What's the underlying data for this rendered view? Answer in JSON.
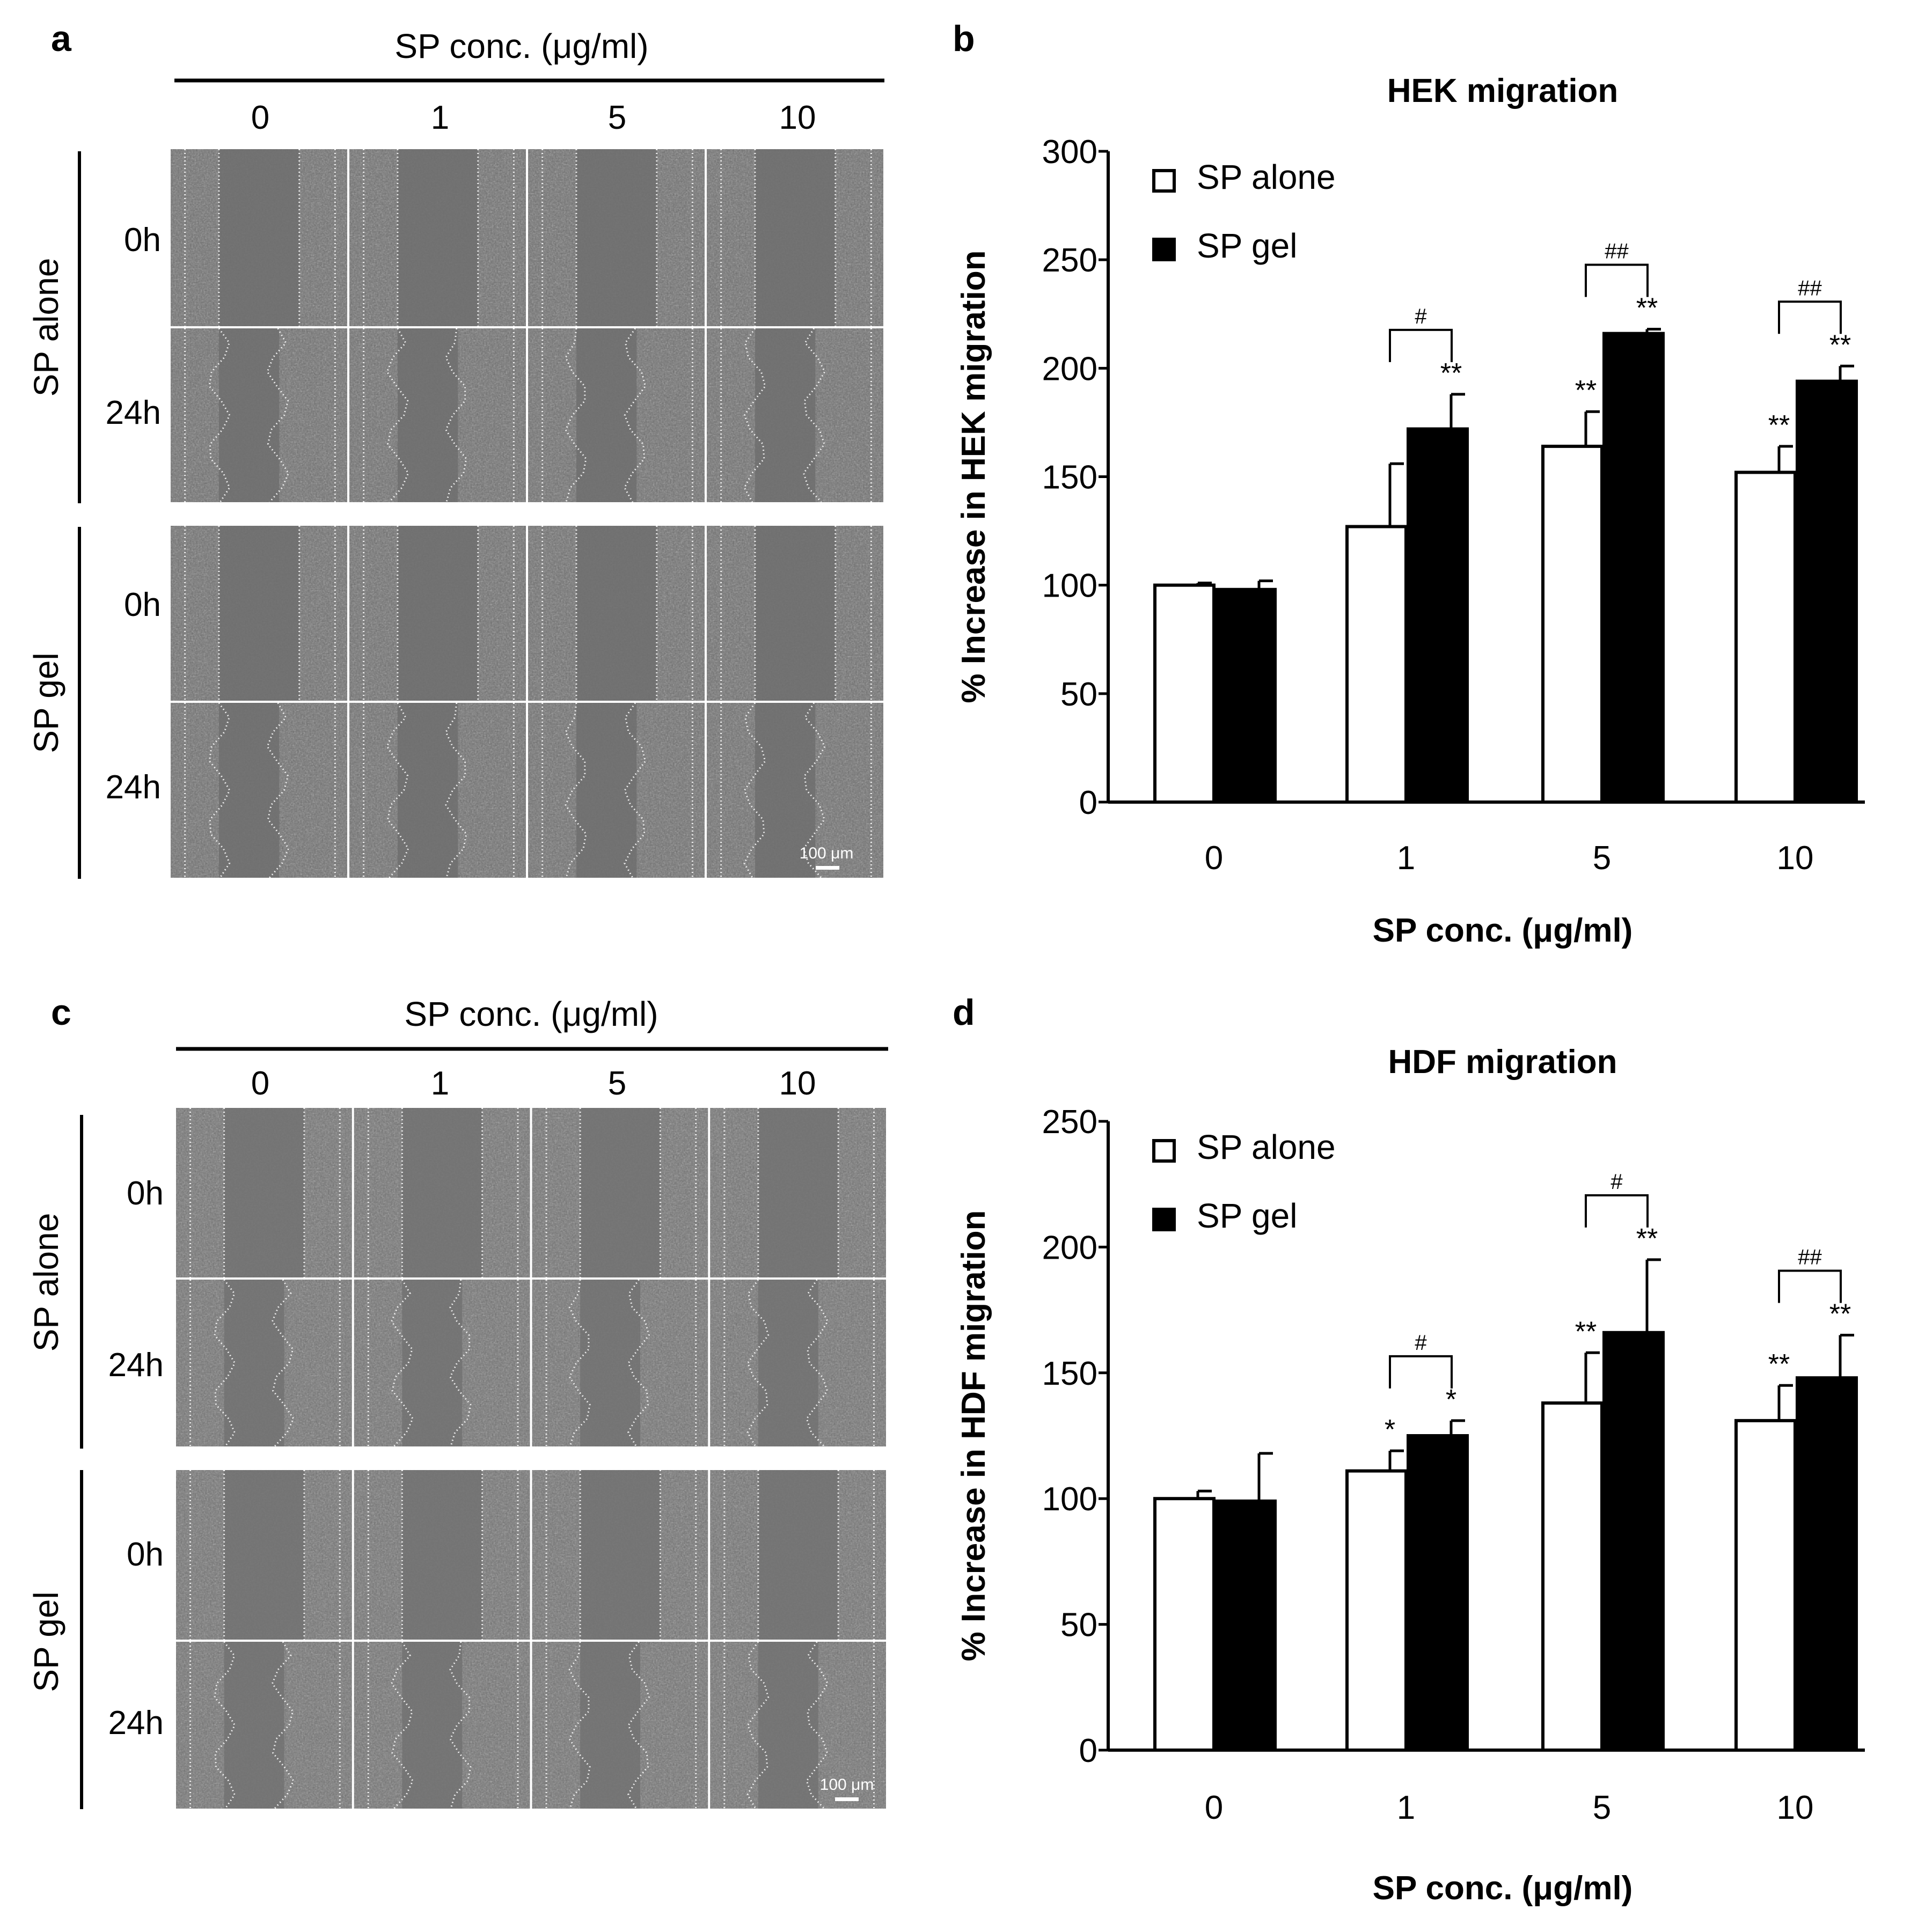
{
  "panels": {
    "a": {
      "letter": "a",
      "header": "SP conc. (μg/ml)",
      "columns": [
        "0",
        "1",
        "5",
        "10"
      ],
      "group_labels": [
        "SP alone",
        "SP gel"
      ],
      "row_labels": [
        "0h",
        "24h",
        "0h",
        "24h"
      ],
      "scale_bar": "100 μm"
    },
    "c": {
      "letter": "c",
      "header": "SP conc. (μg/ml)",
      "columns": [
        "0",
        "1",
        "5",
        "10"
      ],
      "group_labels": [
        "SP alone",
        "SP gel"
      ],
      "row_labels": [
        "0h",
        "24h",
        "0h",
        "24h"
      ],
      "scale_bar": "100 μm"
    },
    "b": {
      "letter": "b"
    },
    "d": {
      "letter": "d"
    }
  },
  "chart_data": [
    {
      "type": "bar",
      "title": "HEK migration",
      "xlabel": "SP conc. (μg/ml)",
      "ylabel": "% Increase in HEK migration",
      "ylim": [
        0,
        300
      ],
      "yticks": [
        "0",
        "50",
        "100",
        "150",
        "200",
        "250",
        "300"
      ],
      "categories": [
        "0",
        "1",
        "5",
        "10"
      ],
      "series": [
        {
          "name": "SP alone",
          "values": [
            100,
            127,
            164,
            152
          ],
          "errors": [
            1,
            29,
            16,
            12
          ],
          "color": "#ffffff",
          "stars": [
            "",
            "",
            "**",
            "**"
          ]
        },
        {
          "name": "SP gel",
          "values": [
            98,
            172,
            216,
            194
          ],
          "errors": [
            4,
            16,
            2,
            7
          ],
          "color": "#000000",
          "stars": [
            "",
            "**",
            "**",
            "**"
          ]
        }
      ],
      "brackets": [
        "",
        "#",
        "##",
        "##"
      ],
      "legend_position": "top-left"
    },
    {
      "type": "bar",
      "title": "HDF migration",
      "xlabel": "SP conc. (μg/ml)",
      "ylabel": "% Increase in HDF migration",
      "ylim": [
        0,
        250
      ],
      "yticks": [
        "0",
        "50",
        "100",
        "150",
        "200",
        "250"
      ],
      "categories": [
        "0",
        "1",
        "5",
        "10"
      ],
      "series": [
        {
          "name": "SP alone",
          "values": [
            100,
            111,
            138,
            131
          ],
          "errors": [
            3,
            8,
            20,
            14
          ],
          "color": "#ffffff",
          "stars": [
            "",
            "*",
            "**",
            "**"
          ]
        },
        {
          "name": "SP gel",
          "values": [
            99,
            125,
            166,
            148
          ],
          "errors": [
            19,
            6,
            29,
            17
          ],
          "color": "#000000",
          "stars": [
            "",
            "*",
            "**",
            "**"
          ]
        }
      ],
      "brackets": [
        "",
        "#",
        "#",
        "##"
      ],
      "legend_position": "top-left"
    }
  ]
}
